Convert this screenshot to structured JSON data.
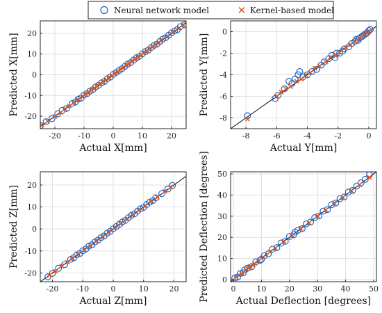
{
  "legend": {
    "nn_label": "Neural network model",
    "kb_label": "Kernel-based model"
  },
  "colors": {
    "nn": "#2166c4",
    "kb": "#d95319",
    "diag": "#000000",
    "grid": "#e0e0e0",
    "axis": "#262626"
  },
  "chart_data": [
    {
      "type": "scatter",
      "xlabel": "Actual X[mm]",
      "ylabel": "Predicted X[mm]",
      "xlim": [
        -25,
        25
      ],
      "ylim": [
        -26,
        26
      ],
      "xticks": [
        -20,
        -10,
        0,
        10,
        20
      ],
      "yticks": [
        -20,
        -10,
        0,
        10,
        20
      ],
      "grid": true,
      "series": [
        {
          "name": "Neural network model",
          "marker": "circle",
          "x": [
            -25,
            -23,
            -21,
            -19,
            -17.5,
            -16,
            -14,
            -13,
            -12,
            -11,
            -10,
            -9,
            -8,
            -7,
            -6,
            -5,
            -4,
            -3,
            -2,
            -1,
            0,
            1,
            2,
            3,
            4,
            5,
            6,
            7,
            8,
            9,
            10,
            11,
            12,
            13,
            14,
            15,
            16,
            17,
            18,
            19,
            20,
            21,
            22,
            23,
            24.5
          ],
          "y": [
            -24.5,
            -22.6,
            -21.2,
            -18.8,
            -17.2,
            -16.3,
            -13.8,
            -13.2,
            -11.8,
            -11.2,
            -9.8,
            -9.1,
            -7.9,
            -7.2,
            -5.8,
            -5.1,
            -3.9,
            -3.2,
            -1.9,
            -1.1,
            0.2,
            1.1,
            2.1,
            2.9,
            4.1,
            5.2,
            5.9,
            7.1,
            8.2,
            8.9,
            10.1,
            11.2,
            11.9,
            13.1,
            14.2,
            14.8,
            16.1,
            17.2,
            17.9,
            19.1,
            20.2,
            21.1,
            21.8,
            23.2,
            24.1
          ]
        },
        {
          "name": "Kernel-based model",
          "marker": "x",
          "x": [
            -24.5,
            -22.5,
            -20,
            -18,
            -16.5,
            -15,
            -13.5,
            -12,
            -10.5,
            -9.5,
            -8.5,
            -7.5,
            -6.5,
            -5.5,
            -4.5,
            -3.5,
            -2.5,
            -1.5,
            -0.5,
            0.5,
            1.5,
            2.5,
            3.5,
            4.5,
            5.5,
            6.5,
            7.5,
            8.5,
            9.5,
            10.5,
            11.5,
            12.5,
            13.5,
            14.5,
            15.5,
            16.5,
            18.5,
            20.5,
            22.5,
            24
          ],
          "y": [
            -24.3,
            -22.4,
            -20.1,
            -18.2,
            -16.4,
            -15.1,
            -13.4,
            -12.1,
            -10.6,
            -9.4,
            -8.6,
            -7.4,
            -6.6,
            -5.4,
            -4.6,
            -3.4,
            -2.6,
            -1.4,
            -0.6,
            0.6,
            1.4,
            2.6,
            3.4,
            4.6,
            5.4,
            6.6,
            7.4,
            8.6,
            9.4,
            10.6,
            11.4,
            12.6,
            13.4,
            14.6,
            15.4,
            16.6,
            18.4,
            20.6,
            22.4,
            24.1
          ]
        }
      ]
    },
    {
      "type": "scatter",
      "xlabel": "Actual Y[mm]",
      "ylabel": "Predicted Y[mm]",
      "xlim": [
        -9,
        0.5
      ],
      "ylim": [
        -9,
        1
      ],
      "xticks": [
        -8,
        -6,
        -4,
        -2,
        0
      ],
      "yticks": [
        -8,
        -6,
        -4,
        -2,
        0
      ],
      "grid": true,
      "series": [
        {
          "name": "Neural network model",
          "marker": "circle",
          "x": [
            -7.9,
            -6.1,
            -5.9,
            -5.5,
            -5.2,
            -5.0,
            -4.8,
            -4.6,
            -4.3,
            -4.0,
            -3.7,
            -3.4,
            -3.1,
            -2.9,
            -2.6,
            -2.4,
            -2.1,
            -1.9,
            -1.6,
            -1.3,
            -1.1,
            -0.9,
            -0.7,
            -0.5,
            -0.4,
            -0.3,
            -0.2,
            -0.1,
            0.0,
            0.1,
            -2.2,
            -1.7,
            -0.8,
            -0.6,
            -4.5
          ],
          "y": [
            -7.8,
            -6.2,
            -5.9,
            -5.3,
            -4.6,
            -4.8,
            -4.4,
            -4.0,
            -4.2,
            -4.0,
            -3.7,
            -3.5,
            -3.1,
            -2.8,
            -2.5,
            -2.2,
            -2.0,
            -2.0,
            -1.6,
            -1.4,
            -1.1,
            -0.9,
            -0.8,
            -0.5,
            -0.4,
            -0.3,
            -0.2,
            -0.1,
            0.1,
            0.2,
            -2.4,
            -1.8,
            -0.7,
            -0.6,
            -3.7
          ]
        },
        {
          "name": "Kernel-based model",
          "marker": "x",
          "x": [
            -7.9,
            -6.0,
            -5.7,
            -5.4,
            -5.1,
            -4.7,
            -4.4,
            -4.1,
            -3.8,
            -3.5,
            -3.2,
            -2.8,
            -2.5,
            -2.2,
            -1.9,
            -1.5,
            -1.2,
            -0.9,
            -0.6,
            -0.3,
            -0.1,
            0.0
          ],
          "y": [
            -8.1,
            -6.0,
            -5.6,
            -5.3,
            -5.1,
            -4.6,
            -4.4,
            -4.0,
            -3.8,
            -3.4,
            -3.2,
            -2.8,
            -2.4,
            -2.2,
            -1.9,
            -1.5,
            -1.2,
            -0.9,
            -0.6,
            -0.3,
            -0.1,
            0.0
          ]
        }
      ]
    },
    {
      "type": "scatter",
      "xlabel": "Actual Z[mm]",
      "ylabel": "Predicted Z[mm]",
      "xlim": [
        -24,
        24
      ],
      "ylim": [
        -24,
        26
      ],
      "xticks": [
        -20,
        -10,
        0,
        10,
        20
      ],
      "yticks": [
        -20,
        -10,
        0,
        10,
        20
      ],
      "grid": true,
      "series": [
        {
          "name": "Neural network model",
          "marker": "circle",
          "x": [
            -21.5,
            -20,
            -18,
            -16,
            -14,
            -13,
            -12,
            -11,
            -10,
            -9,
            -8,
            -7,
            -6,
            -5,
            -4,
            -3,
            -2,
            -1,
            0,
            1,
            2,
            3,
            4,
            5,
            6,
            7,
            8,
            9,
            10,
            11,
            12,
            13,
            14,
            16,
            18,
            19.5
          ],
          "y": [
            -21.8,
            -20.2,
            -17.9,
            -16.2,
            -13.8,
            -13.1,
            -11.8,
            -11.2,
            -9.9,
            -9.1,
            -7.8,
            -7.2,
            -5.9,
            -5.1,
            -3.9,
            -3.2,
            -1.9,
            -1.1,
            0.1,
            1.1,
            2.1,
            3.2,
            3.9,
            5.1,
            6.2,
            6.9,
            8.1,
            9.2,
            9.8,
            11.1,
            12.2,
            12.9,
            14.2,
            16.1,
            18.2,
            19.8
          ]
        },
        {
          "name": "Kernel-based model",
          "marker": "x",
          "x": [
            -21,
            -19,
            -17,
            -15,
            -13.5,
            -11.5,
            -9.5,
            -7.5,
            -5.5,
            -3.5,
            -1.5,
            0.5,
            2.5,
            4.5,
            6.5,
            8.5,
            10.5,
            12.5,
            14.5,
            17,
            19
          ],
          "y": [
            -21.1,
            -19.2,
            -16.9,
            -15.1,
            -13.4,
            -11.6,
            -9.4,
            -7.6,
            -5.4,
            -3.6,
            -1.4,
            0.6,
            2.4,
            4.6,
            6.4,
            8.6,
            10.4,
            12.6,
            14.4,
            17.1,
            19.1
          ]
        }
      ]
    },
    {
      "type": "scatter",
      "xlabel": "Actual Deflection [degrees]",
      "ylabel": "Predicted Deflection [degrees]",
      "xlim": [
        -1,
        51
      ],
      "ylim": [
        -1,
        51
      ],
      "xticks": [
        0,
        10,
        20,
        30,
        40,
        50
      ],
      "yticks": [
        0,
        10,
        20,
        30,
        40,
        50
      ],
      "grid": true,
      "series": [
        {
          "name": "Neural network model",
          "marker": "circle",
          "x": [
            0.5,
            1.5,
            2.5,
            3.5,
            5,
            6.5,
            8,
            9.5,
            11,
            12.5,
            14,
            15.5,
            17,
            18.5,
            20,
            21.5,
            23,
            24.5,
            26,
            27.5,
            29,
            30.5,
            32,
            33.5,
            35,
            36.5,
            38,
            39.5,
            41,
            42.5,
            44,
            45.5,
            47,
            48.5,
            4,
            10,
            22
          ],
          "y": [
            0.8,
            1.2,
            2.9,
            3.2,
            5.4,
            6.1,
            8.4,
            9.1,
            11.3,
            12.2,
            14.4,
            15.1,
            17.3,
            18.1,
            20.4,
            21.2,
            23.3,
            24.1,
            26.4,
            27.2,
            29.3,
            30.1,
            32.4,
            33.1,
            35.4,
            36.2,
            38.3,
            39.1,
            41.4,
            42.2,
            44.3,
            45.8,
            47.4,
            49.6,
            4.6,
            9.6,
            22.5
          ]
        },
        {
          "name": "Kernel-based model",
          "marker": "x",
          "x": [
            1,
            3,
            4.5,
            5.5,
            6,
            7,
            7.5,
            9,
            10.5,
            13,
            15,
            18,
            21,
            24,
            27,
            30,
            33,
            36,
            39,
            42,
            45,
            48.5
          ],
          "y": [
            1.2,
            2.8,
            4.6,
            5.4,
            6.3,
            6.8,
            7.6,
            8.8,
            10.6,
            13.1,
            14.8,
            18.1,
            20.9,
            24.2,
            26.8,
            30.1,
            32.9,
            36.2,
            38.8,
            42.1,
            44.9,
            48.3
          ]
        }
      ]
    }
  ]
}
